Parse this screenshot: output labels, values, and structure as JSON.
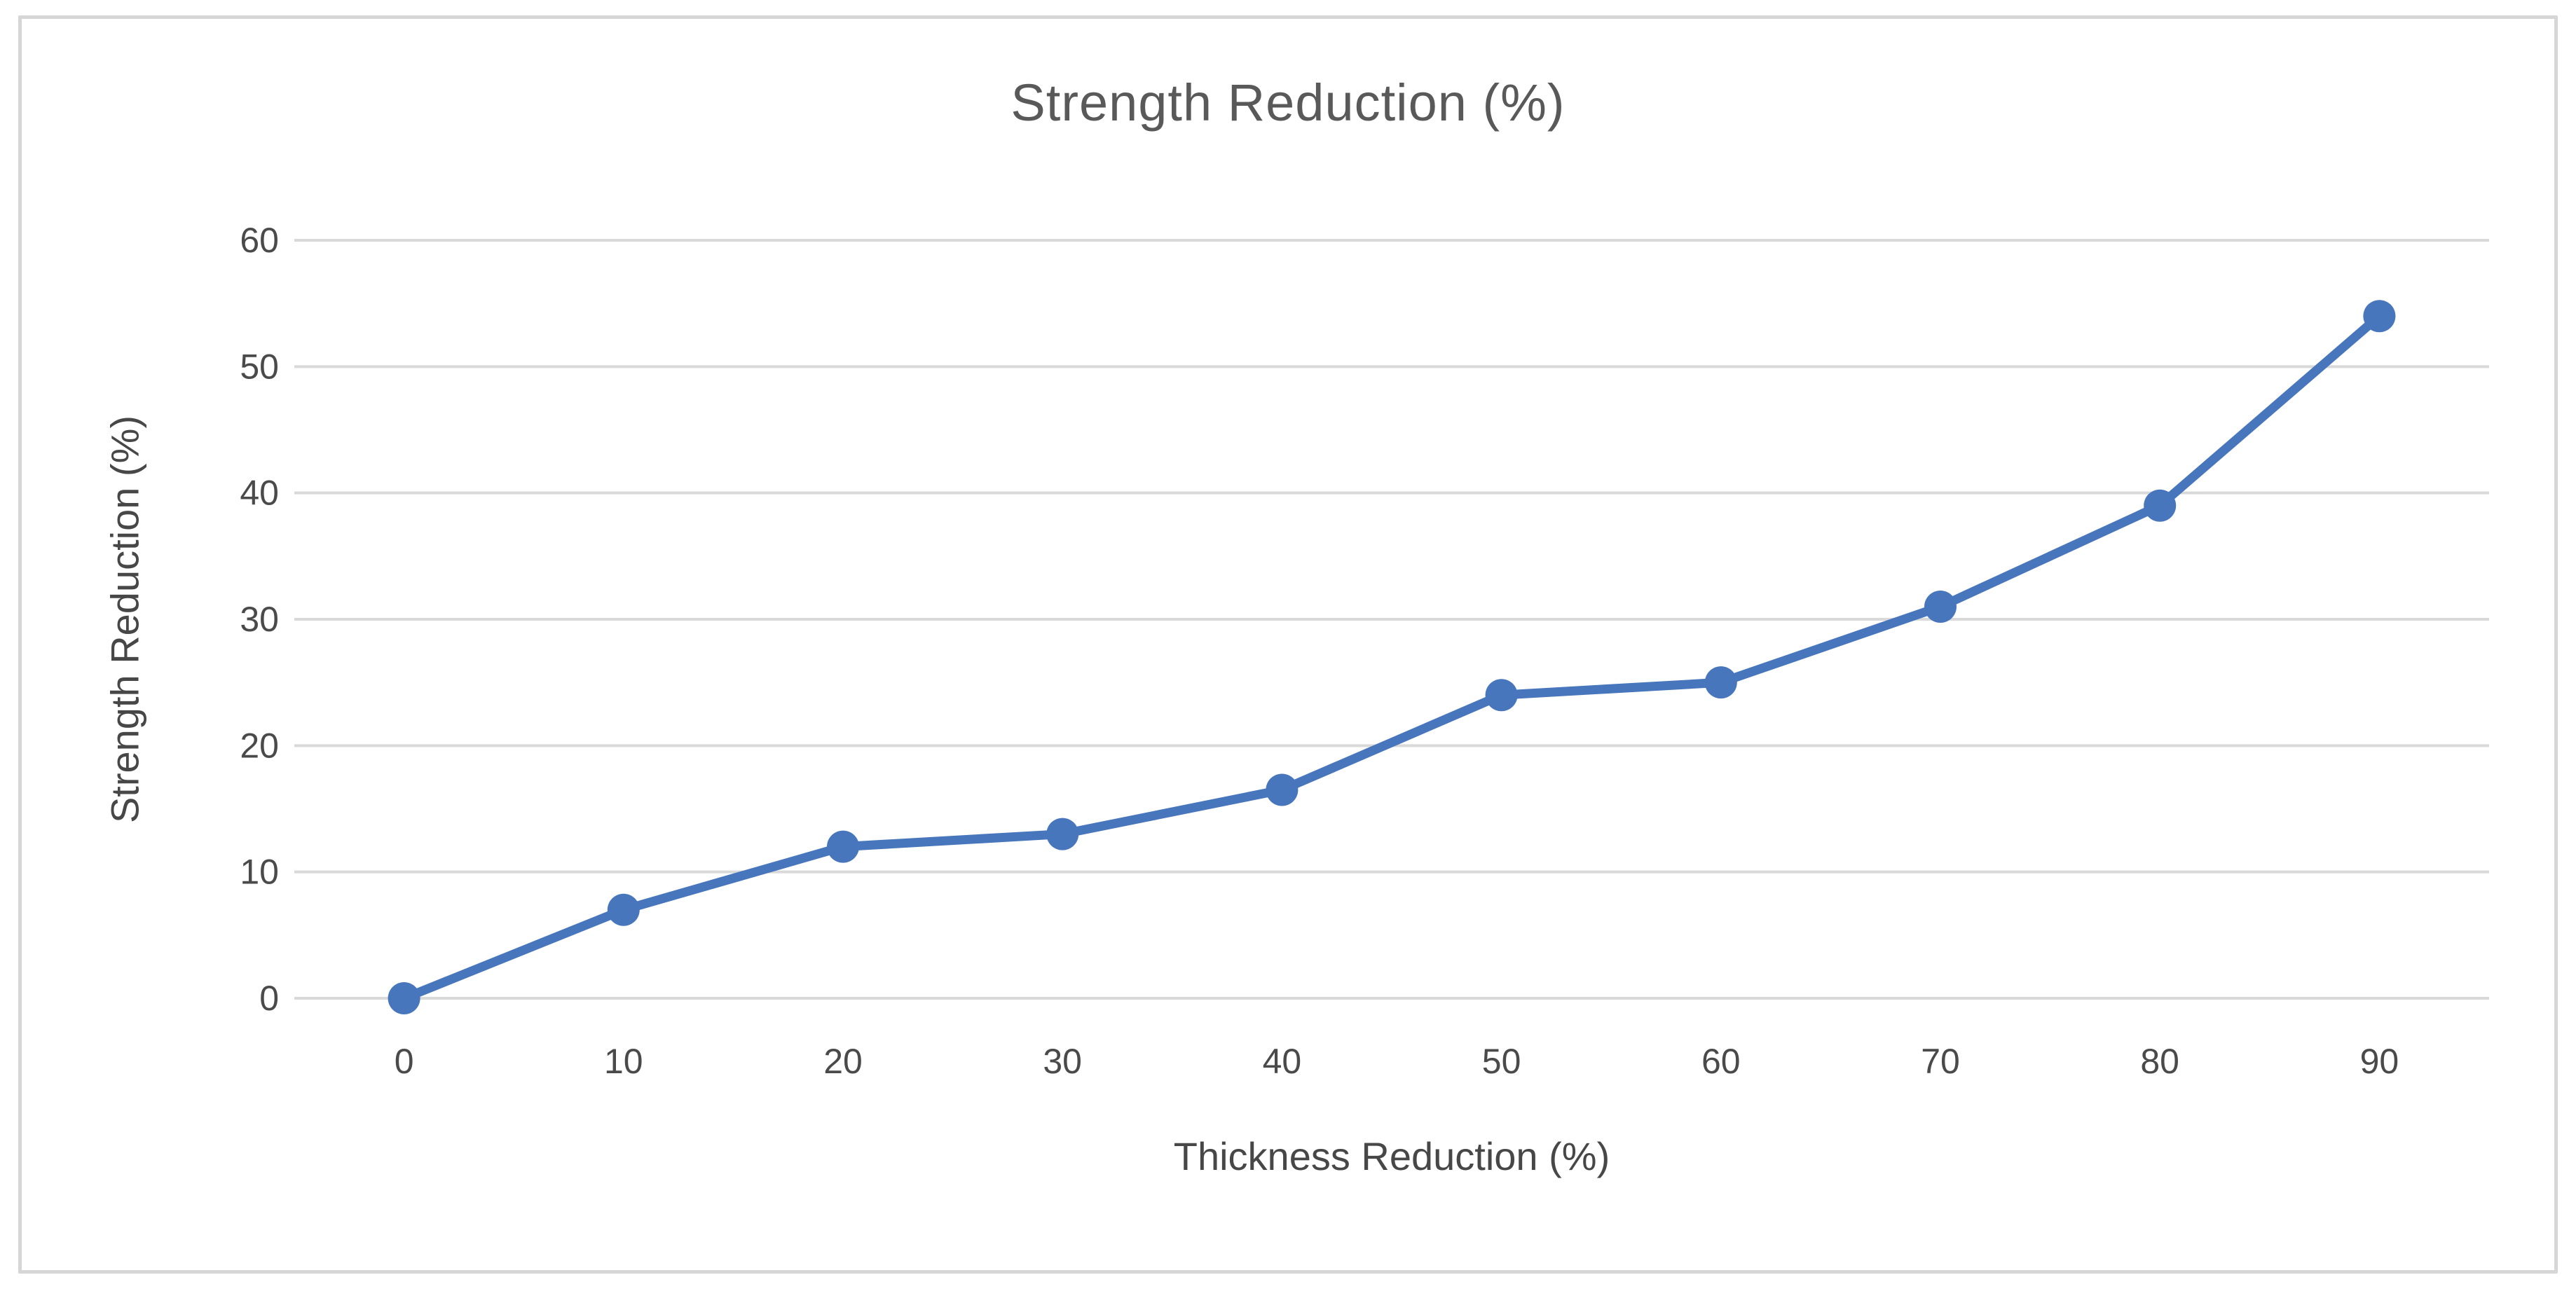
{
  "chart_data": {
    "type": "line",
    "title": "Strength Reduction (%)",
    "xlabel": "Thickness Reduction (%)",
    "ylabel": "Strength Reduction (%)",
    "categories": [
      "0",
      "10",
      "20",
      "30",
      "40",
      "50",
      "60",
      "70",
      "80",
      "90"
    ],
    "series": [
      {
        "name": "Strength Reduction (%)",
        "values": [
          0,
          7,
          12,
          13,
          16.5,
          24,
          25,
          31,
          39,
          54
        ]
      }
    ],
    "ylim": [
      0,
      60
    ],
    "yticks": [
      0,
      10,
      20,
      30,
      40,
      50,
      60
    ],
    "grid": "horizontal",
    "legend": "none",
    "marker": "circle",
    "colors": {
      "series_line": "#4776bc",
      "gridline": "#d9d9d9",
      "chart_border": "#d6d6d6",
      "title_text": "#595959",
      "axis_text": "#4a4a4a",
      "background": "#ffffff"
    }
  }
}
